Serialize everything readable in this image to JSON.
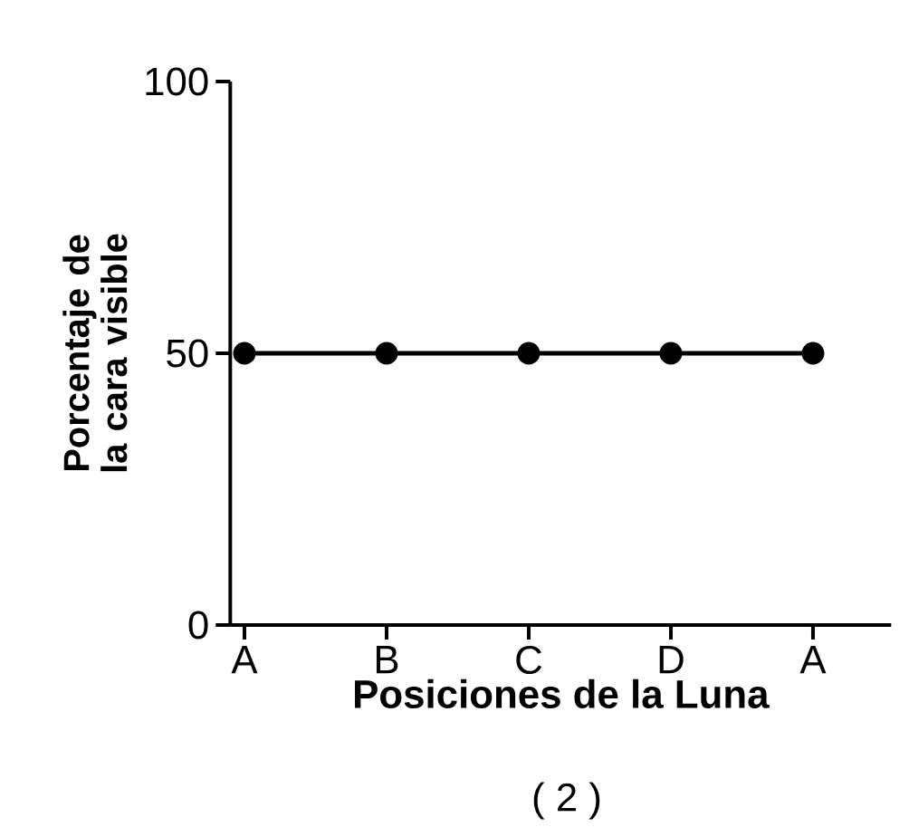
{
  "chart_data": {
    "type": "line",
    "xlabel": "Posiciones de la Luna",
    "ylabel": "Porcentaje de la cara visible",
    "annotations": [
      "( 2 )"
    ],
    "categories": [
      "A",
      "B",
      "C",
      "D",
      "A"
    ],
    "series": [
      {
        "color": "#000000",
        "values": [
          50,
          50,
          50,
          50,
          50
        ]
      }
    ],
    "ylim": [
      0,
      100
    ],
    "yticks": [
      0,
      50,
      100
    ],
    "marker": "circle",
    "line_style": "solid",
    "grid": false
  }
}
